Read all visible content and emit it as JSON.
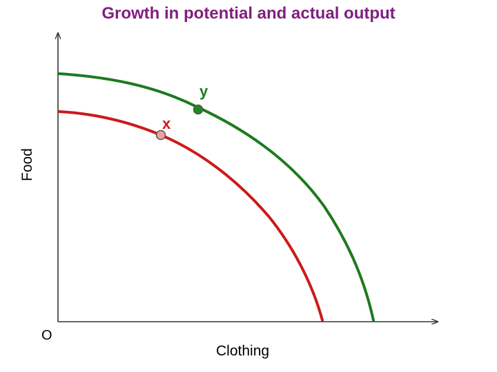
{
  "title": "Growth in potential and actual output",
  "axes": {
    "x_label": "Clothing",
    "y_label": "Food",
    "origin_label": "O"
  },
  "points": {
    "x": {
      "label": "x",
      "label_color": "#cc1a1a",
      "fill": "#f0a0a0"
    },
    "y": {
      "label": "y",
      "label_color": "#1e7a1e",
      "fill": "#1e8a1e"
    }
  },
  "colors": {
    "title": "#7f1f7f",
    "inner_curve": "#cc1a1a",
    "outer_curve": "#1e7a1e",
    "axis": "#333333"
  }
}
